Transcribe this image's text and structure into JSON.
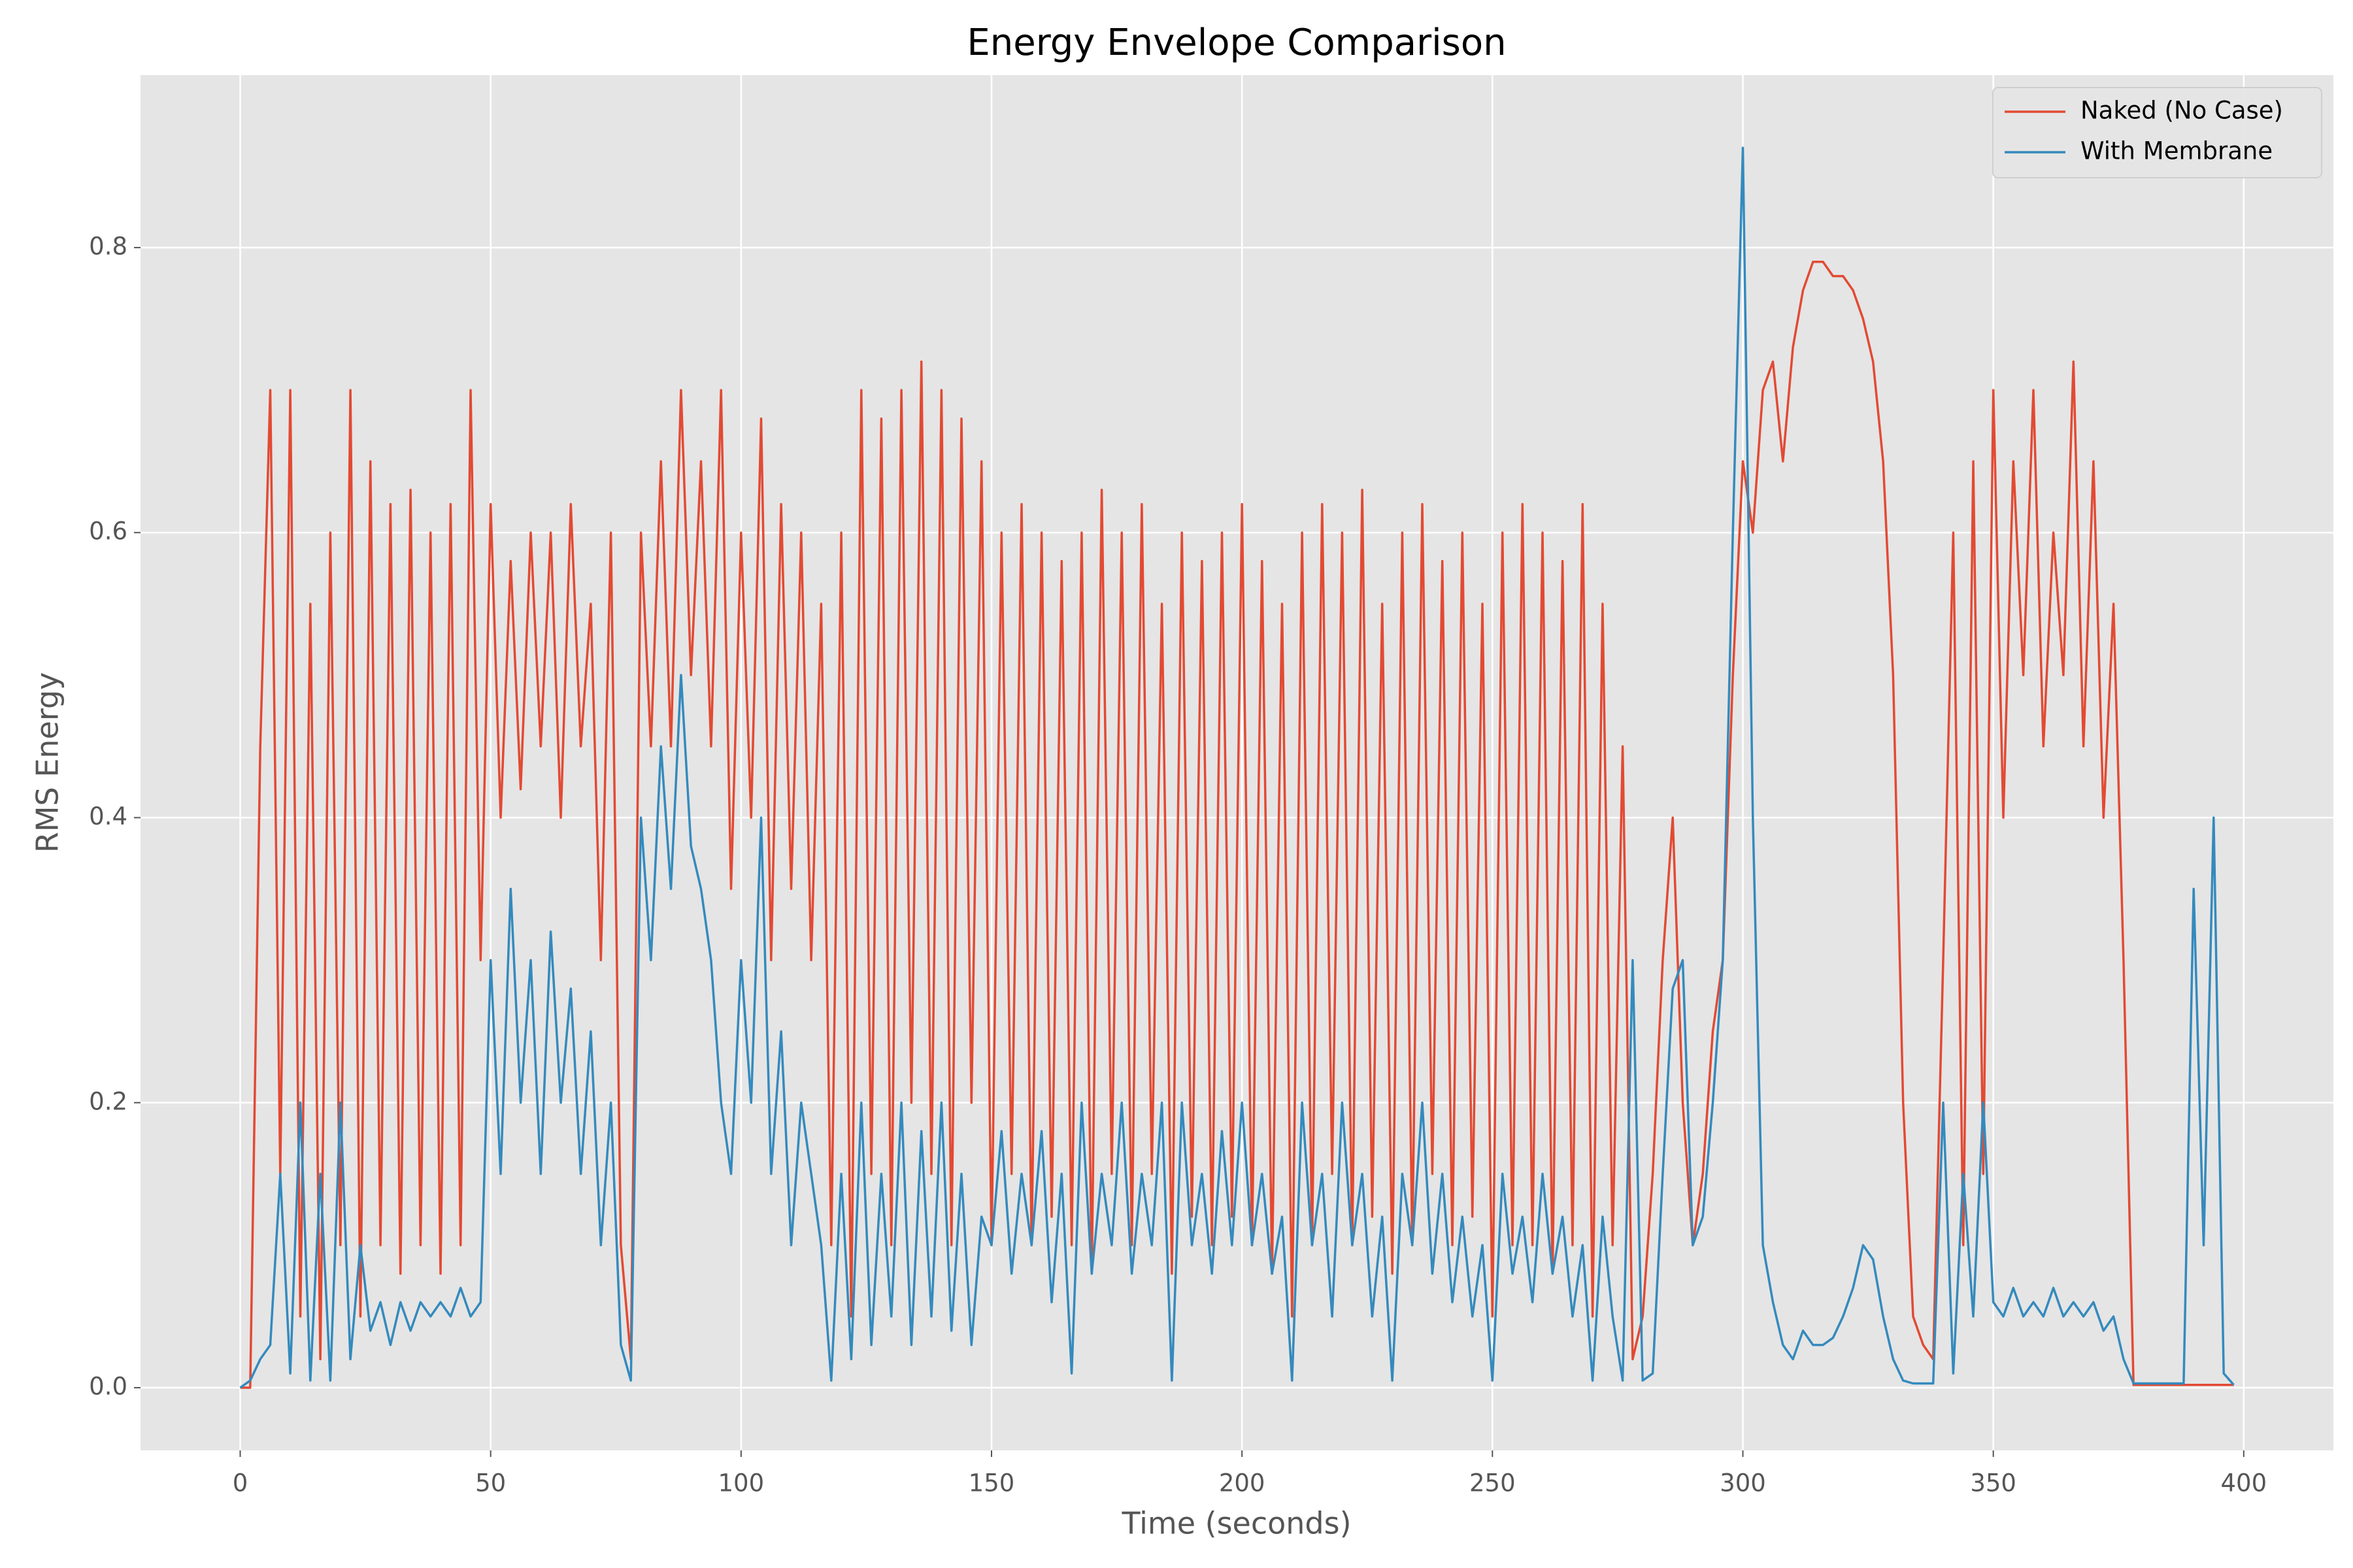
{
  "chart_data": {
    "type": "line",
    "title": "Energy Envelope Comparison",
    "x_label": "Time (seconds)",
    "y_label": "RMS Energy",
    "x": [
      0,
      2,
      4,
      6,
      8,
      10,
      12,
      14,
      16,
      18,
      20,
      22,
      24,
      26,
      28,
      30,
      32,
      34,
      36,
      38,
      40,
      42,
      44,
      46,
      48,
      50,
      52,
      54,
      56,
      58,
      60,
      62,
      64,
      66,
      68,
      70,
      72,
      74,
      76,
      78,
      80,
      82,
      84,
      86,
      88,
      90,
      92,
      94,
      96,
      98,
      100,
      102,
      104,
      106,
      108,
      110,
      112,
      114,
      116,
      118,
      120,
      122,
      124,
      126,
      128,
      130,
      132,
      134,
      136,
      138,
      140,
      142,
      144,
      146,
      148,
      150,
      152,
      154,
      156,
      158,
      160,
      162,
      164,
      166,
      168,
      170,
      172,
      174,
      176,
      178,
      180,
      182,
      184,
      186,
      188,
      190,
      192,
      194,
      196,
      198,
      200,
      202,
      204,
      206,
      208,
      210,
      212,
      214,
      216,
      218,
      220,
      222,
      224,
      226,
      228,
      230,
      232,
      234,
      236,
      238,
      240,
      242,
      244,
      246,
      248,
      250,
      252,
      254,
      256,
      258,
      260,
      262,
      264,
      266,
      268,
      270,
      272,
      274,
      276,
      278,
      280,
      282,
      284,
      286,
      288,
      290,
      292,
      294,
      296,
      298,
      300,
      302,
      304,
      306,
      308,
      310,
      312,
      314,
      316,
      318,
      320,
      322,
      324,
      326,
      328,
      330,
      332,
      334,
      336,
      338,
      340,
      342,
      344,
      346,
      348,
      350,
      352,
      354,
      356,
      358,
      360,
      362,
      364,
      366,
      368,
      370,
      372,
      374,
      376,
      378,
      380,
      382,
      384,
      386,
      388,
      390,
      392,
      394,
      396,
      398
    ],
    "series": [
      {
        "name": "Naked (No Case)",
        "color": "#e24a33",
        "values": [
          0,
          0,
          0.45,
          0.7,
          0.15,
          0.7,
          0.05,
          0.55,
          0.02,
          0.6,
          0.1,
          0.7,
          0.05,
          0.65,
          0.1,
          0.62,
          0.08,
          0.63,
          0.1,
          0.6,
          0.08,
          0.62,
          0.1,
          0.7,
          0.3,
          0.62,
          0.4,
          0.58,
          0.42,
          0.6,
          0.45,
          0.6,
          0.4,
          0.62,
          0.45,
          0.55,
          0.3,
          0.6,
          0.1,
          0.02,
          0.6,
          0.45,
          0.65,
          0.45,
          0.7,
          0.5,
          0.65,
          0.45,
          0.7,
          0.35,
          0.6,
          0.4,
          0.68,
          0.3,
          0.62,
          0.35,
          0.6,
          0.3,
          0.55,
          0.1,
          0.6,
          0.05,
          0.7,
          0.15,
          0.68,
          0.1,
          0.7,
          0.2,
          0.72,
          0.15,
          0.7,
          0.1,
          0.68,
          0.2,
          0.65,
          0.1,
          0.6,
          0.15,
          0.62,
          0.1,
          0.6,
          0.12,
          0.58,
          0.1,
          0.6,
          0.08,
          0.63,
          0.15,
          0.6,
          0.1,
          0.62,
          0.15,
          0.55,
          0.08,
          0.6,
          0.12,
          0.58,
          0.1,
          0.6,
          0.12,
          0.62,
          0.1,
          0.58,
          0.08,
          0.55,
          0.05,
          0.6,
          0.1,
          0.62,
          0.15,
          0.6,
          0.1,
          0.63,
          0.12,
          0.55,
          0.08,
          0.6,
          0.1,
          0.62,
          0.15,
          0.58,
          0.1,
          0.6,
          0.12,
          0.55,
          0.05,
          0.6,
          0.1,
          0.62,
          0.1,
          0.6,
          0.08,
          0.58,
          0.1,
          0.62,
          0.05,
          0.55,
          0.1,
          0.45,
          0.02,
          0.05,
          0.15,
          0.3,
          0.4,
          0.2,
          0.1,
          0.15,
          0.25,
          0.3,
          0.5,
          0.65,
          0.6,
          0.7,
          0.72,
          0.65,
          0.73,
          0.77,
          0.79,
          0.79,
          0.78,
          0.78,
          0.77,
          0.75,
          0.72,
          0.65,
          0.5,
          0.2,
          0.05,
          0.03,
          0.02,
          0.3,
          0.6,
          0.1,
          0.65,
          0.15,
          0.7,
          0.4,
          0.65,
          0.5,
          0.7,
          0.45,
          0.6,
          0.5,
          0.72,
          0.45,
          0.65,
          0.4,
          0.55,
          0.3,
          0.002,
          0.002,
          0.002,
          0.002,
          0.002,
          0.002,
          0.002,
          0.002,
          0.002,
          0.002,
          0.002
        ]
      },
      {
        "name": "With Membrane",
        "color": "#348abd",
        "values": [
          0,
          0.005,
          0.02,
          0.03,
          0.15,
          0.01,
          0.2,
          0.005,
          0.15,
          0.005,
          0.2,
          0.02,
          0.1,
          0.04,
          0.06,
          0.03,
          0.06,
          0.04,
          0.06,
          0.05,
          0.06,
          0.05,
          0.07,
          0.05,
          0.06,
          0.3,
          0.15,
          0.35,
          0.2,
          0.3,
          0.15,
          0.32,
          0.2,
          0.28,
          0.15,
          0.25,
          0.1,
          0.2,
          0.03,
          0.005,
          0.4,
          0.3,
          0.45,
          0.35,
          0.5,
          0.38,
          0.35,
          0.3,
          0.2,
          0.15,
          0.3,
          0.2,
          0.4,
          0.15,
          0.25,
          0.1,
          0.2,
          0.15,
          0.1,
          0.005,
          0.15,
          0.02,
          0.2,
          0.03,
          0.15,
          0.05,
          0.2,
          0.03,
          0.18,
          0.05,
          0.2,
          0.04,
          0.15,
          0.03,
          0.12,
          0.1,
          0.18,
          0.08,
          0.15,
          0.1,
          0.18,
          0.06,
          0.15,
          0.01,
          0.2,
          0.08,
          0.15,
          0.1,
          0.2,
          0.08,
          0.15,
          0.1,
          0.2,
          0.005,
          0.2,
          0.1,
          0.15,
          0.08,
          0.18,
          0.1,
          0.2,
          0.1,
          0.15,
          0.08,
          0.12,
          0.005,
          0.2,
          0.1,
          0.15,
          0.05,
          0.2,
          0.1,
          0.15,
          0.05,
          0.12,
          0.005,
          0.15,
          0.1,
          0.2,
          0.08,
          0.15,
          0.06,
          0.12,
          0.05,
          0.1,
          0.005,
          0.15,
          0.08,
          0.12,
          0.06,
          0.15,
          0.08,
          0.12,
          0.05,
          0.1,
          0.005,
          0.12,
          0.05,
          0.005,
          0.3,
          0.005,
          0.01,
          0.15,
          0.28,
          0.3,
          0.1,
          0.12,
          0.2,
          0.3,
          0.6,
          0.87,
          0.4,
          0.1,
          0.06,
          0.03,
          0.02,
          0.04,
          0.03,
          0.03,
          0.035,
          0.05,
          0.07,
          0.1,
          0.09,
          0.05,
          0.02,
          0.005,
          0.003,
          0.003,
          0.003,
          0.2,
          0.01,
          0.15,
          0.05,
          0.2,
          0.06,
          0.05,
          0.07,
          0.05,
          0.06,
          0.05,
          0.07,
          0.05,
          0.06,
          0.05,
          0.06,
          0.04,
          0.05,
          0.02,
          0.003,
          0.003,
          0.003,
          0.003,
          0.003,
          0.003,
          0.35,
          0.1,
          0.4,
          0.01,
          0.002
        ]
      }
    ],
    "xlim": [
      -19.9,
      417.9
    ],
    "ylim": [
      -0.044,
      0.921
    ],
    "xticks": [
      0,
      50,
      100,
      150,
      200,
      250,
      300,
      350,
      400
    ],
    "yticks": [
      {
        "value": 0,
        "label": "0.0"
      },
      0.2,
      0.4,
      0.6,
      0.8
    ],
    "grid": true,
    "legend": "upper right"
  }
}
